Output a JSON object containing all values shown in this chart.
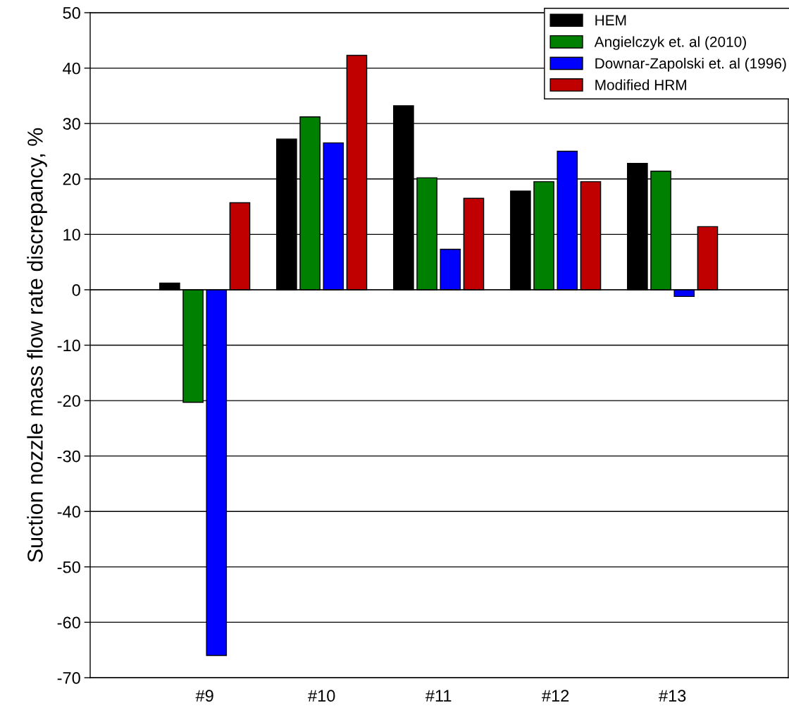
{
  "chart_data": {
    "type": "bar",
    "ylabel": "Suction nozzle mass flow rate discrepancy, %",
    "categories": [
      "#9",
      "#10",
      "#11",
      "#12",
      "#13"
    ],
    "series": [
      {
        "name": "HEM",
        "color": "#000000",
        "values": [
          1.2,
          27.2,
          33.2,
          17.8,
          22.8
        ]
      },
      {
        "name": "Angielczyk et. al (2010)",
        "color": "#008000",
        "values": [
          -20.3,
          31.2,
          20.2,
          19.5,
          21.4
        ]
      },
      {
        "name": "Downar-Zapolski et. al (1996)",
        "color": "#0000ff",
        "values": [
          -66,
          26.5,
          7.3,
          25.0,
          -1.2
        ]
      },
      {
        "name": "Modified HRM",
        "color": "#c00000",
        "values": [
          15.7,
          42.3,
          16.5,
          19.5,
          11.4
        ]
      }
    ],
    "ylim": [
      -70,
      50
    ],
    "yticks": [
      -70,
      -60,
      -50,
      -40,
      -30,
      -20,
      -10,
      0,
      10,
      20,
      30,
      40,
      50
    ],
    "grid": "y",
    "legend": "top right"
  }
}
